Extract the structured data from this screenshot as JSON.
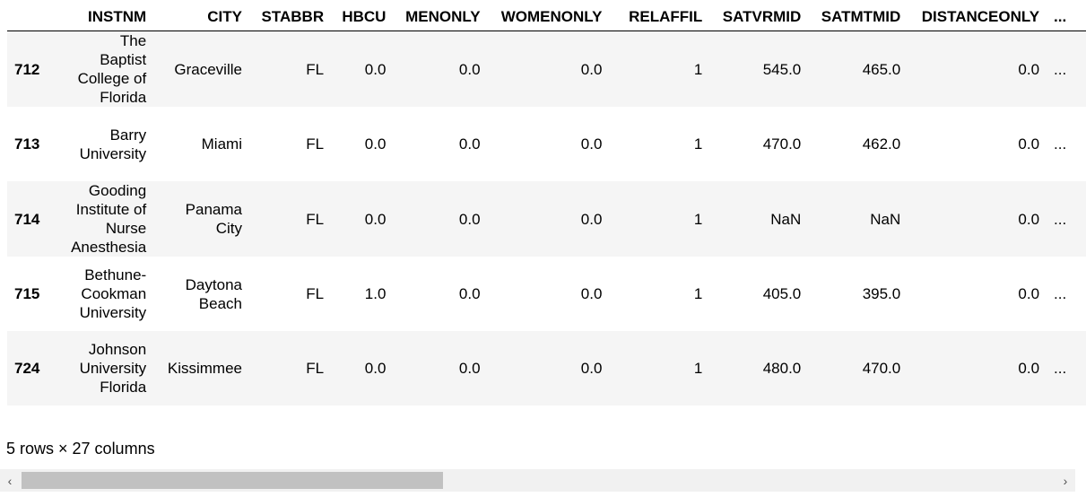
{
  "dataframe": {
    "columns": [
      "INSTNM",
      "CITY",
      "STABBR",
      "HBCU",
      "MENONLY",
      "WOMENONLY",
      "RELAFFIL",
      "SATVRMID",
      "SATMTMID",
      "DISTANCEONLY",
      "..."
    ],
    "rows": [
      {
        "index": "712",
        "cells": [
          "The Baptist College of Florida",
          "Graceville",
          "FL",
          "0.0",
          "0.0",
          "0.0",
          "1",
          "545.0",
          "465.0",
          "0.0",
          "..."
        ]
      },
      {
        "index": "713",
        "cells": [
          "Barry University",
          "Miami",
          "FL",
          "0.0",
          "0.0",
          "0.0",
          "1",
          "470.0",
          "462.0",
          "0.0",
          "..."
        ]
      },
      {
        "index": "714",
        "cells": [
          "Gooding Institute of Nurse Anesthesia",
          "Panama City",
          "FL",
          "0.0",
          "0.0",
          "0.0",
          "1",
          "NaN",
          "NaN",
          "0.0",
          "..."
        ]
      },
      {
        "index": "715",
        "cells": [
          "Bethune-Cookman University",
          "Daytona Beach",
          "FL",
          "1.0",
          "0.0",
          "0.0",
          "1",
          "405.0",
          "395.0",
          "0.0",
          "..."
        ]
      },
      {
        "index": "724",
        "cells": [
          "Johnson University Florida",
          "Kissimmee",
          "FL",
          "0.0",
          "0.0",
          "0.0",
          "1",
          "480.0",
          "470.0",
          "0.0",
          "..."
        ]
      }
    ]
  },
  "summary": "5 rows × 27 columns",
  "scrollbar": {
    "left_arrow": "‹",
    "right_arrow": "›",
    "position_fraction": 0.0,
    "visible_fraction": 0.39
  },
  "icons": {
    "left": "chevron-left-icon",
    "right": "chevron-right-icon"
  }
}
